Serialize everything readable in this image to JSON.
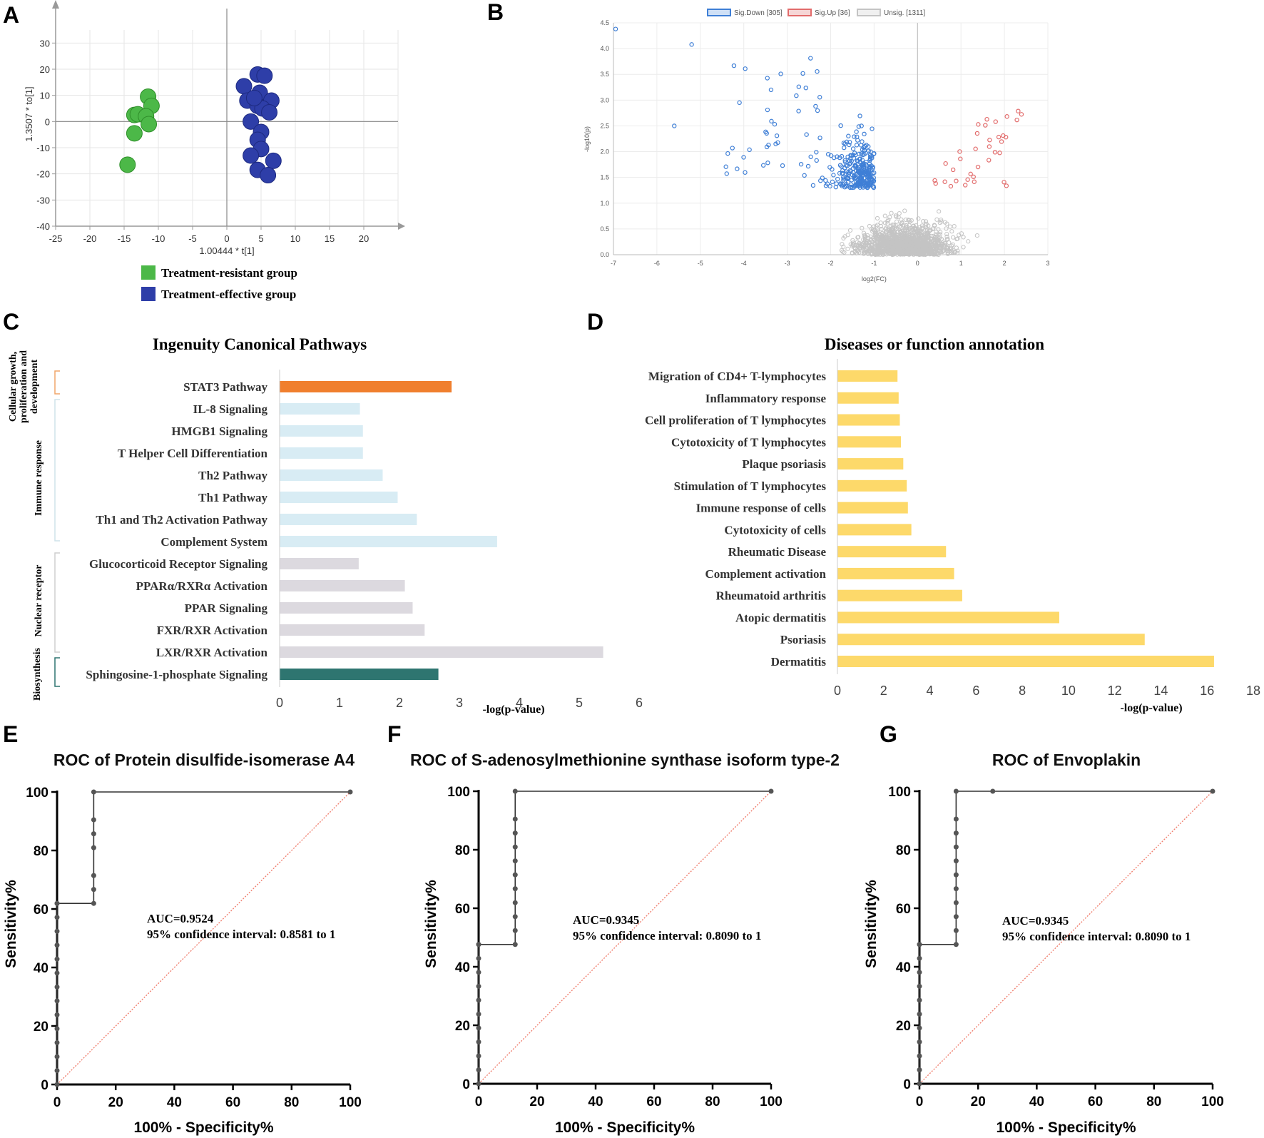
{
  "panels": {
    "A": {
      "letter": "A",
      "xlabel": "1.00444 * t[1]",
      "ylabel": "1.3507 * to[1]",
      "legend": [
        "Treatment-resistant group",
        "Treatment-effective group"
      ],
      "colors": [
        "#4cb848",
        "#2e3ea8"
      ]
    },
    "B": {
      "letter": "B",
      "xlabel": "log2(FC)",
      "ylabel": "-log10(p)",
      "legend": [
        "Sig.Down [305]",
        "Sig.Up [36]",
        "Unsig. [1311]"
      ],
      "colors": [
        "#3f7fd6",
        "#e26b6b",
        "#c4c4c4"
      ]
    },
    "C": {
      "letter": "C",
      "title": "Ingenuity Canonical Pathways",
      "xlabel": "-log(p-value)",
      "groups": [
        "Cellular growth, proliferation and development",
        "Immune response",
        "Nuclear receptor",
        "Biosynthesis"
      ]
    },
    "D": {
      "letter": "D",
      "title": "Diseases or function annotation",
      "xlabel": "-log(p-value)"
    },
    "E": {
      "letter": "E",
      "title": "ROC of Protein disulfide-isomerase A4",
      "xlabel": "100% - Specificity%",
      "ylabel": "Sensitivity%",
      "auc": "AUC=0.9524",
      "ci": "95% confidence interval: 0.8581 to 1"
    },
    "F": {
      "letter": "F",
      "title": "ROC of S-adenosylmethionine synthase isoform type-2",
      "xlabel": "100% - Specificity%",
      "ylabel": "Sensitivity%",
      "auc": "AUC=0.9345",
      "ci": "95% confidence interval: 0.8090 to 1"
    },
    "G": {
      "letter": "G",
      "title": "ROC of Envoplakin",
      "xlabel": "100% - Specificity%",
      "ylabel": "Sensitivity%",
      "auc": "AUC=0.9345",
      "ci": "95% confidence interval: 0.8090 to 1"
    }
  },
  "chart_data": [
    {
      "panel": "A",
      "type": "scatter",
      "title": "",
      "xlabel": "1.00444 * t[1]",
      "ylabel": "1.3507 * to[1]",
      "xlim": [
        -25,
        25
      ],
      "ylim": [
        -40,
        35
      ],
      "xticks": [
        -25,
        -20,
        -15,
        -10,
        -5,
        0,
        5,
        10,
        15,
        20
      ],
      "yticks": [
        30,
        20,
        10,
        0,
        -10,
        -20,
        -30,
        -40
      ],
      "series": [
        {
          "name": "Treatment-resistant group",
          "color": "#4cb848",
          "x": [
            -11.5,
            -11,
            -13.5,
            -13,
            -11.8,
            -11.4,
            -13.5,
            -14.5
          ],
          "y": [
            9.5,
            6,
            2.5,
            2.8,
            2,
            -1,
            -4.5,
            -16.5
          ]
        },
        {
          "name": "Treatment-effective group",
          "color": "#2e3ea8",
          "x": [
            4.5,
            5.5,
            2.5,
            4.8,
            3,
            6.5,
            4.5,
            5.2,
            4,
            6.2,
            3.5,
            5,
            4.5,
            5,
            3.5,
            6.8,
            4.5,
            6
          ],
          "y": [
            18,
            17.5,
            13.5,
            11,
            8,
            8,
            6,
            5,
            9,
            3.5,
            0,
            -4,
            -7,
            -10.5,
            -13,
            -15,
            -18.5,
            -20.5
          ]
        }
      ]
    },
    {
      "panel": "B",
      "type": "scatter",
      "xlabel": "log2(FC)",
      "ylabel": "-log10(p)",
      "xlim": [
        -7,
        3
      ],
      "ylim": [
        0,
        4.5
      ],
      "xticks": [
        -7,
        -6,
        -5,
        -4,
        -3,
        -2,
        -1,
        0,
        1,
        2,
        3
      ],
      "yticks": [
        0,
        0.5,
        1.0,
        1.5,
        2.0,
        2.5,
        3.0,
        3.5,
        4.0,
        4.5
      ],
      "series": [
        {
          "name": "Sig.Down [305]",
          "color": "#3f7fd6",
          "count": 305
        },
        {
          "name": "Sig.Up [36]",
          "color": "#e26b6b",
          "count": 36
        },
        {
          "name": "Unsig. [1311]",
          "color": "#c4c4c4",
          "count": 1311
        }
      ]
    },
    {
      "panel": "C",
      "type": "bar",
      "orientation": "horizontal",
      "title": "Ingenuity Canonical Pathways",
      "xlabel": "-log(p-value)",
      "xlim": [
        0,
        6
      ],
      "xticks": [
        0,
        1,
        2,
        3,
        4,
        5,
        6
      ],
      "categories": [
        "STAT3 Pathway",
        "IL-8 Signaling",
        "HMGB1 Signaling",
        "T Helper Cell Differentiation",
        "Th2 Pathway",
        "Th1 Pathway",
        "Th1 and Th2 Activation Pathway",
        "Complement System",
        "Glucocorticoid Receptor Signaling",
        "PPARα/RXRα Activation",
        "PPAR Signaling",
        "FXR/RXR Activation",
        "LXR/RXR Activation",
        "Sphingosine-1-phosphate Signaling"
      ],
      "values": [
        2.87,
        1.34,
        1.39,
        1.39,
        1.72,
        1.97,
        2.29,
        3.63,
        1.32,
        2.09,
        2.22,
        2.42,
        5.4,
        2.65
      ],
      "colors": [
        "#f07f2e",
        "#d8ecf4",
        "#d8ecf4",
        "#d8ecf4",
        "#d8ecf4",
        "#d8ecf4",
        "#d8ecf4",
        "#d8ecf4",
        "#dcd9df",
        "#dcd9df",
        "#dcd9df",
        "#dcd9df",
        "#dcd9df",
        "#2e7570"
      ]
    },
    {
      "panel": "D",
      "type": "bar",
      "orientation": "horizontal",
      "title": "Diseases or function annotation",
      "xlabel": "-log(p-value)",
      "xlim": [
        0,
        18
      ],
      "xticks": [
        0,
        2,
        4,
        6,
        8,
        10,
        12,
        14,
        16,
        18
      ],
      "categories": [
        "Migration of CD4+ T-lymphocytes",
        "Inflammatory response",
        "Cell proliferation of T lymphocytes",
        "Cytotoxicity of T lymphocytes",
        "Plaque psoriasis",
        "Stimulation of T lymphocytes",
        "Immune response of cells",
        "Cytotoxicity of cells",
        "Rheumatic Disease",
        "Complement activation",
        "Rheumatoid arthritis",
        "Atopic dermatitis",
        "Psoriasis",
        "Dermatitis"
      ],
      "values": [
        2.6,
        2.65,
        2.7,
        2.75,
        2.85,
        3.0,
        3.05,
        3.2,
        4.7,
        5.05,
        5.4,
        9.6,
        13.3,
        16.3
      ],
      "color": "#fdd96a"
    },
    {
      "panel": "E",
      "type": "line",
      "title": "ROC of Protein disulfide-isomerase A4",
      "xlabel": "100% - Specificity%",
      "ylabel": "Sensitivity%",
      "xlim": [
        0,
        100
      ],
      "ylim": [
        0,
        100
      ],
      "xticks": [
        0,
        20,
        40,
        60,
        80,
        100
      ],
      "yticks": [
        0,
        20,
        40,
        60,
        80,
        100
      ],
      "x": [
        0,
        0,
        0,
        0,
        0,
        0,
        0,
        0,
        0,
        0,
        0,
        0,
        0,
        0,
        0,
        12.5,
        12.5,
        12.5,
        12.5,
        12.5,
        12.5,
        12.5,
        100
      ],
      "y": [
        0,
        4.76,
        9.52,
        14.29,
        19.05,
        23.81,
        28.57,
        33.33,
        38.1,
        42.86,
        47.62,
        52.38,
        57.14,
        61.9,
        61.9,
        61.9,
        66.67,
        71.43,
        80.95,
        85.71,
        90.48,
        100,
        100
      ],
      "annotation": "AUC=0.9524 | 95% confidence interval: 0.8581 to 1"
    },
    {
      "panel": "F",
      "type": "line",
      "title": "ROC of S-adenosylmethionine synthase isoform type-2",
      "xlabel": "100% - Specificity%",
      "ylabel": "Sensitivity%",
      "xlim": [
        0,
        100
      ],
      "ylim": [
        0,
        100
      ],
      "xticks": [
        0,
        20,
        40,
        60,
        80,
        100
      ],
      "yticks": [
        0,
        20,
        40,
        60,
        80,
        100
      ],
      "x": [
        0,
        0,
        0,
        0,
        0,
        0,
        0,
        0,
        0,
        0,
        0,
        0,
        12.5,
        12.5,
        12.5,
        12.5,
        12.5,
        12.5,
        12.5,
        12.5,
        12.5,
        12.5,
        12.5,
        100
      ],
      "y": [
        0,
        4.76,
        9.52,
        14.29,
        19.05,
        23.81,
        28.57,
        33.33,
        38.1,
        42.86,
        47.62,
        47.62,
        47.62,
        52.38,
        57.14,
        61.9,
        66.67,
        71.43,
        76.19,
        80.95,
        85.71,
        90.48,
        100,
        100
      ],
      "annotation": "AUC=0.9345 | 95% confidence interval: 0.8090 to 1"
    },
    {
      "panel": "G",
      "type": "line",
      "title": "ROC of Envoplakin",
      "xlabel": "100% - Specificity%",
      "ylabel": "Sensitivity%",
      "xlim": [
        0,
        100
      ],
      "ylim": [
        0,
        100
      ],
      "xticks": [
        0,
        20,
        40,
        60,
        80,
        100
      ],
      "yticks": [
        0,
        20,
        40,
        60,
        80,
        100
      ],
      "x": [
        0,
        0,
        0,
        0,
        0,
        0,
        0,
        0,
        0,
        0,
        0,
        0,
        12.5,
        12.5,
        12.5,
        12.5,
        12.5,
        12.5,
        12.5,
        12.5,
        12.5,
        12.5,
        12.5,
        25,
        100
      ],
      "y": [
        0,
        4.76,
        9.52,
        14.29,
        19.05,
        23.81,
        28.57,
        33.33,
        38.1,
        42.86,
        47.62,
        47.62,
        47.62,
        52.38,
        57.14,
        61.9,
        66.67,
        71.43,
        76.19,
        80.95,
        85.71,
        90.48,
        100,
        100,
        100
      ],
      "annotation": "AUC=0.9345 | 95% confidence interval: 0.8090 to 1"
    }
  ]
}
